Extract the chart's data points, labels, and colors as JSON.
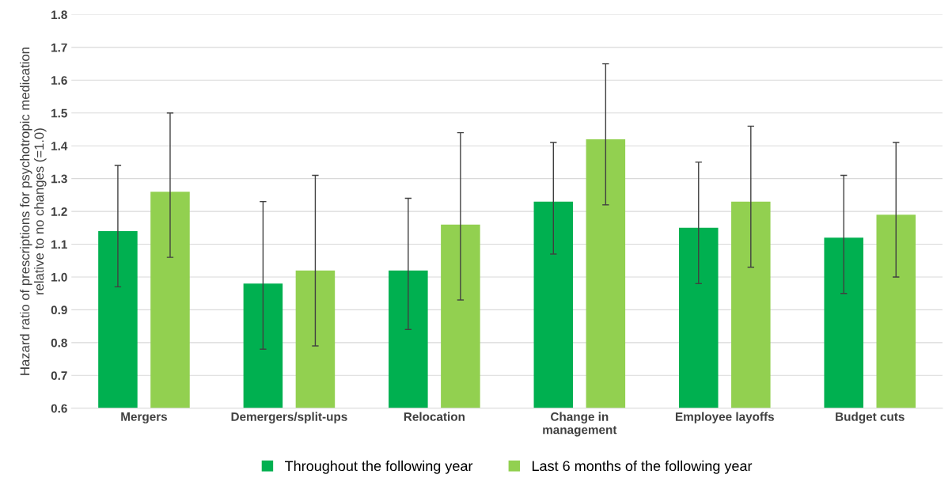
{
  "chart_data": {
    "type": "bar",
    "ylabel": "Hazard ratio of prescriptions for psychotropic medication\nrelative to no changes (=1.0)",
    "categories": [
      "Mergers",
      "Demergers/split-ups",
      "Relocation",
      "Change in\nmanagement",
      "Employee layoffs",
      "Budget cuts"
    ],
    "series": [
      {
        "name": "Throughout the following year",
        "color": "#00b050",
        "values": [
          1.14,
          0.98,
          1.02,
          1.23,
          1.15,
          1.12
        ],
        "errors": [
          [
            0.97,
            1.34
          ],
          [
            0.78,
            1.23
          ],
          [
            0.84,
            1.24
          ],
          [
            1.07,
            1.41
          ],
          [
            0.98,
            1.35
          ],
          [
            0.95,
            1.31
          ]
        ]
      },
      {
        "name": "Last 6 months of the following year",
        "color": "#92d050",
        "values": [
          1.26,
          1.02,
          1.16,
          1.42,
          1.23,
          1.19
        ],
        "errors": [
          [
            1.06,
            1.5
          ],
          [
            0.79,
            1.31
          ],
          [
            0.93,
            1.44
          ],
          [
            1.22,
            1.65
          ],
          [
            1.03,
            1.46
          ],
          [
            1.0,
            1.41
          ]
        ]
      }
    ],
    "ylim": [
      0.6,
      1.8
    ],
    "yticks": [
      {
        "value": 0.6,
        "label": "0.6"
      },
      {
        "value": 0.7,
        "label": "0.7"
      },
      {
        "value": 0.8,
        "label": "0.8"
      },
      {
        "value": 0.9,
        "label": "0.9"
      },
      {
        "value": 1.0,
        "label": "1.0"
      },
      {
        "value": 1.1,
        "label": "1.1"
      },
      {
        "value": 1.2,
        "label": "1.2"
      },
      {
        "value": 1.3,
        "label": "1.3"
      },
      {
        "value": 1.4,
        "label": "1.4"
      },
      {
        "value": 1.5,
        "label": "1.5"
      },
      {
        "value": 1.6,
        "label": "1.6"
      },
      {
        "value": 1.7,
        "label": "1.7"
      },
      {
        "value": 1.8,
        "label": "1.8"
      }
    ],
    "grid": "y",
    "legend": "bottom"
  }
}
